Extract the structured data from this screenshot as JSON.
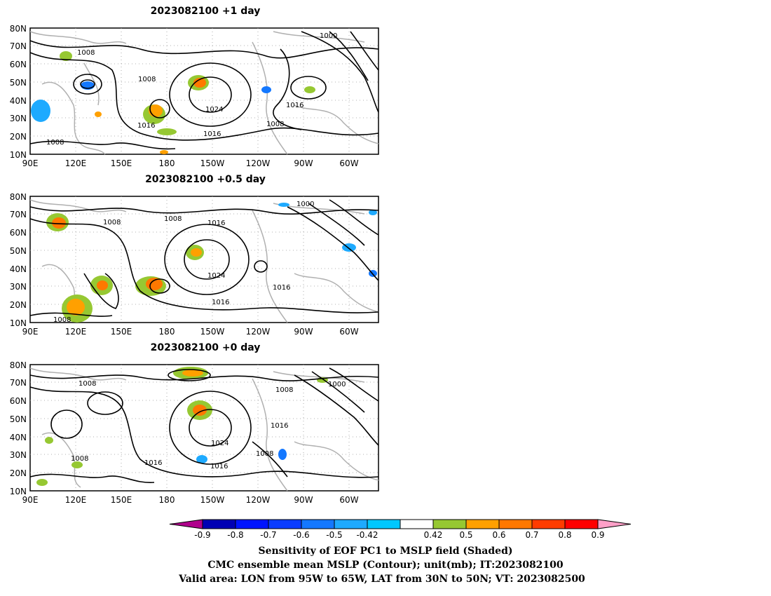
{
  "panels": [
    {
      "title": "2023082100  +1 day",
      "contour_labels": [
        "1008",
        "1008",
        "1000",
        "1024",
        "1016",
        "1008",
        "1016",
        "1016",
        "1008"
      ]
    },
    {
      "title": "2023082100  +0.5 day",
      "contour_labels": [
        "1008",
        "1008",
        "1016",
        "1000",
        "1024",
        "1016",
        "1016",
        "1008"
      ]
    },
    {
      "title": "2023082100  +0 day",
      "contour_labels": [
        "1008",
        "1008",
        "1000",
        "1016",
        "1024",
        "1016",
        "1016",
        "1008",
        "1008"
      ]
    }
  ],
  "map": {
    "lat_ticks": [
      "80N",
      "70N",
      "60N",
      "50N",
      "40N",
      "30N",
      "20N",
      "10N"
    ],
    "lon_ticks": [
      "90E",
      "120E",
      "150E",
      "180",
      "150W",
      "120W",
      "90W",
      "60W"
    ]
  },
  "colorbar": {
    "labels": [
      "-0.9",
      "-0.8",
      "-0.7",
      "-0.6",
      "-0.5",
      "-0.42",
      "0.42",
      "0.5",
      "0.6",
      "0.7",
      "0.8",
      "0.9"
    ],
    "colors": [
      "#b0008c",
      "#0000b4",
      "#0014ff",
      "#0a3cff",
      "#1478ff",
      "#1eaaff",
      "#00c8ff",
      "#ffffff",
      "#96c832",
      "#ffa000",
      "#ff7800",
      "#ff3c00",
      "#ff0000",
      "#ffa0c8"
    ]
  },
  "caption": {
    "line1": "Sensitivity of EOF PC1 to MSLP field (Shaded)",
    "line2": "CMC ensemble mean MSLP (Contour); unit(mb); IT:2023082100",
    "line3": "Valid area: LON from 95W to 65W, LAT from 30N to 50N; VT: 2023082500"
  }
}
